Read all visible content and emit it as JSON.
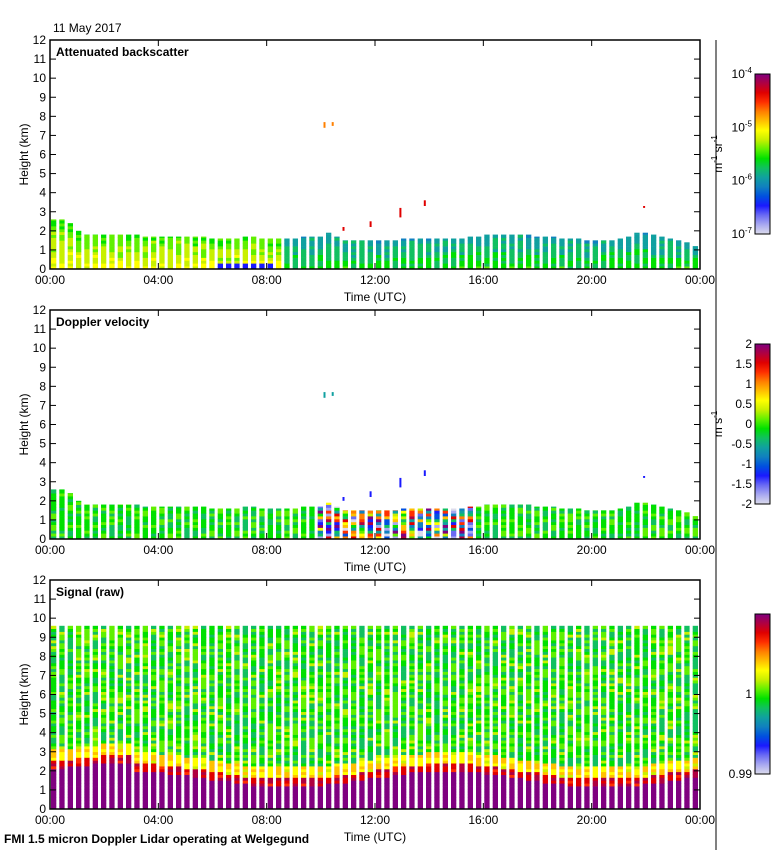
{
  "date_label": "11 May 2017",
  "footer": "FMI 1.5 micron Doppler Lidar operating at Welgegund",
  "colormap": [
    "#dcdcec",
    "#a8a8f0",
    "#6a6af4",
    "#1a1aff",
    "#0050e0",
    "#1080c0",
    "#10a0a0",
    "#10c060",
    "#00e000",
    "#60f000",
    "#c8f000",
    "#ffff00",
    "#ffc000",
    "#ff8000",
    "#ff3000",
    "#e00000",
    "#b00040",
    "#800080"
  ],
  "chart_data": [
    {
      "type": "heatmap",
      "title": "Attenuated backscatter",
      "xlabel": "Time (UTC)",
      "ylabel": "Height (km)",
      "xticks": [
        "00:00",
        "04:00",
        "08:00",
        "12:00",
        "16:00",
        "20:00",
        "00:00"
      ],
      "yticks": [
        "0",
        "1",
        "2",
        "3",
        "4",
        "5",
        "6",
        "7",
        "8",
        "9",
        "10",
        "11",
        "12"
      ],
      "ylim": [
        0,
        12
      ],
      "xlim_hours": [
        0,
        24
      ],
      "colorbar": {
        "label": "m-1 sr-1",
        "unit_base": "m",
        "unit_exp1": "-1",
        "unit_base2": " sr",
        "unit_exp2": "-1",
        "scale": "log",
        "range": [
          1e-07,
          0.0001
        ],
        "ticks": [
          {
            "base": "10",
            "exp": "-4",
            "frac": 1.0
          },
          {
            "base": "10",
            "exp": "-5",
            "frac": 0.6667
          },
          {
            "base": "10",
            "exp": "-6",
            "frac": 0.3333
          },
          {
            "base": "10",
            "exp": "-7",
            "frac": 0.0
          }
        ]
      },
      "layer_top_km": [
        2.6,
        2.4,
        2.0,
        1.8,
        1.8,
        1.8,
        1.8,
        1.8,
        1.8,
        1.8,
        1.7,
        1.7,
        1.7,
        1.7,
        1.7,
        1.7,
        1.7,
        1.6,
        1.6,
        1.6,
        1.6,
        1.7,
        1.7,
        1.6,
        1.6,
        1.6,
        1.6,
        1.6,
        1.7,
        1.7,
        1.9,
        1.7,
        1.5,
        1.5,
        1.5,
        1.5,
        1.5,
        1.5,
        1.5,
        1.6,
        1.6,
        1.6,
        1.6,
        1.6,
        1.6,
        1.6,
        1.7,
        1.7,
        1.8,
        1.8,
        1.8,
        1.8,
        1.8,
        1.8,
        1.7,
        1.7,
        1.7,
        1.6,
        1.6,
        1.5,
        1.5,
        1.5,
        1.5,
        1.6,
        1.7,
        1.9,
        1.9,
        1.8,
        1.7,
        1.6,
        1.5,
        1.4,
        1.2
      ],
      "mode": "backscatter"
    },
    {
      "type": "heatmap",
      "title": "Doppler velocity",
      "xlabel": "Time (UTC)",
      "ylabel": "Height (km)",
      "xticks": [
        "00:00",
        "04:00",
        "08:00",
        "12:00",
        "16:00",
        "20:00",
        "00:00"
      ],
      "yticks": [
        "0",
        "1",
        "2",
        "3",
        "4",
        "5",
        "6",
        "7",
        "8",
        "9",
        "10",
        "11",
        "12"
      ],
      "ylim": [
        0,
        12
      ],
      "xlim_hours": [
        0,
        24
      ],
      "colorbar": {
        "unit_base": "m",
        "unit_base2": " s",
        "unit_exp2": "-1",
        "scale": "linear",
        "range": [
          -2,
          2
        ],
        "ticks": [
          {
            "base": "2",
            "frac": 1.0
          },
          {
            "base": "1.5",
            "frac": 0.875
          },
          {
            "base": "1",
            "frac": 0.75
          },
          {
            "base": "0.5",
            "frac": 0.625
          },
          {
            "base": "0",
            "frac": 0.5
          },
          {
            "base": "-0.5",
            "frac": 0.375
          },
          {
            "base": "-1",
            "frac": 0.25
          },
          {
            "base": "-1.5",
            "frac": 0.125
          },
          {
            "base": "-2",
            "frac": 0.0
          }
        ]
      },
      "mode": "velocity"
    },
    {
      "type": "heatmap",
      "title": "Signal (raw)",
      "xlabel": "Time (UTC)",
      "ylabel": "Height (km)",
      "xticks": [
        "00:00",
        "04:00",
        "08:00",
        "12:00",
        "16:00",
        "20:00",
        "00:00"
      ],
      "yticks": [
        "0",
        "1",
        "2",
        "3",
        "4",
        "5",
        "6",
        "7",
        "8",
        "9",
        "10",
        "11",
        "12"
      ],
      "ylim": [
        0,
        12
      ],
      "xlim_hours": [
        0,
        24
      ],
      "colorbar": {
        "scale": "linear",
        "range": [
          0.99,
          1.01
        ],
        "ticks": [
          {
            "base": "1",
            "frac": 0.5
          },
          {
            "base": "0.99",
            "frac": 0.0
          }
        ]
      },
      "signal_top_km": 9.6,
      "mode": "signal"
    }
  ]
}
